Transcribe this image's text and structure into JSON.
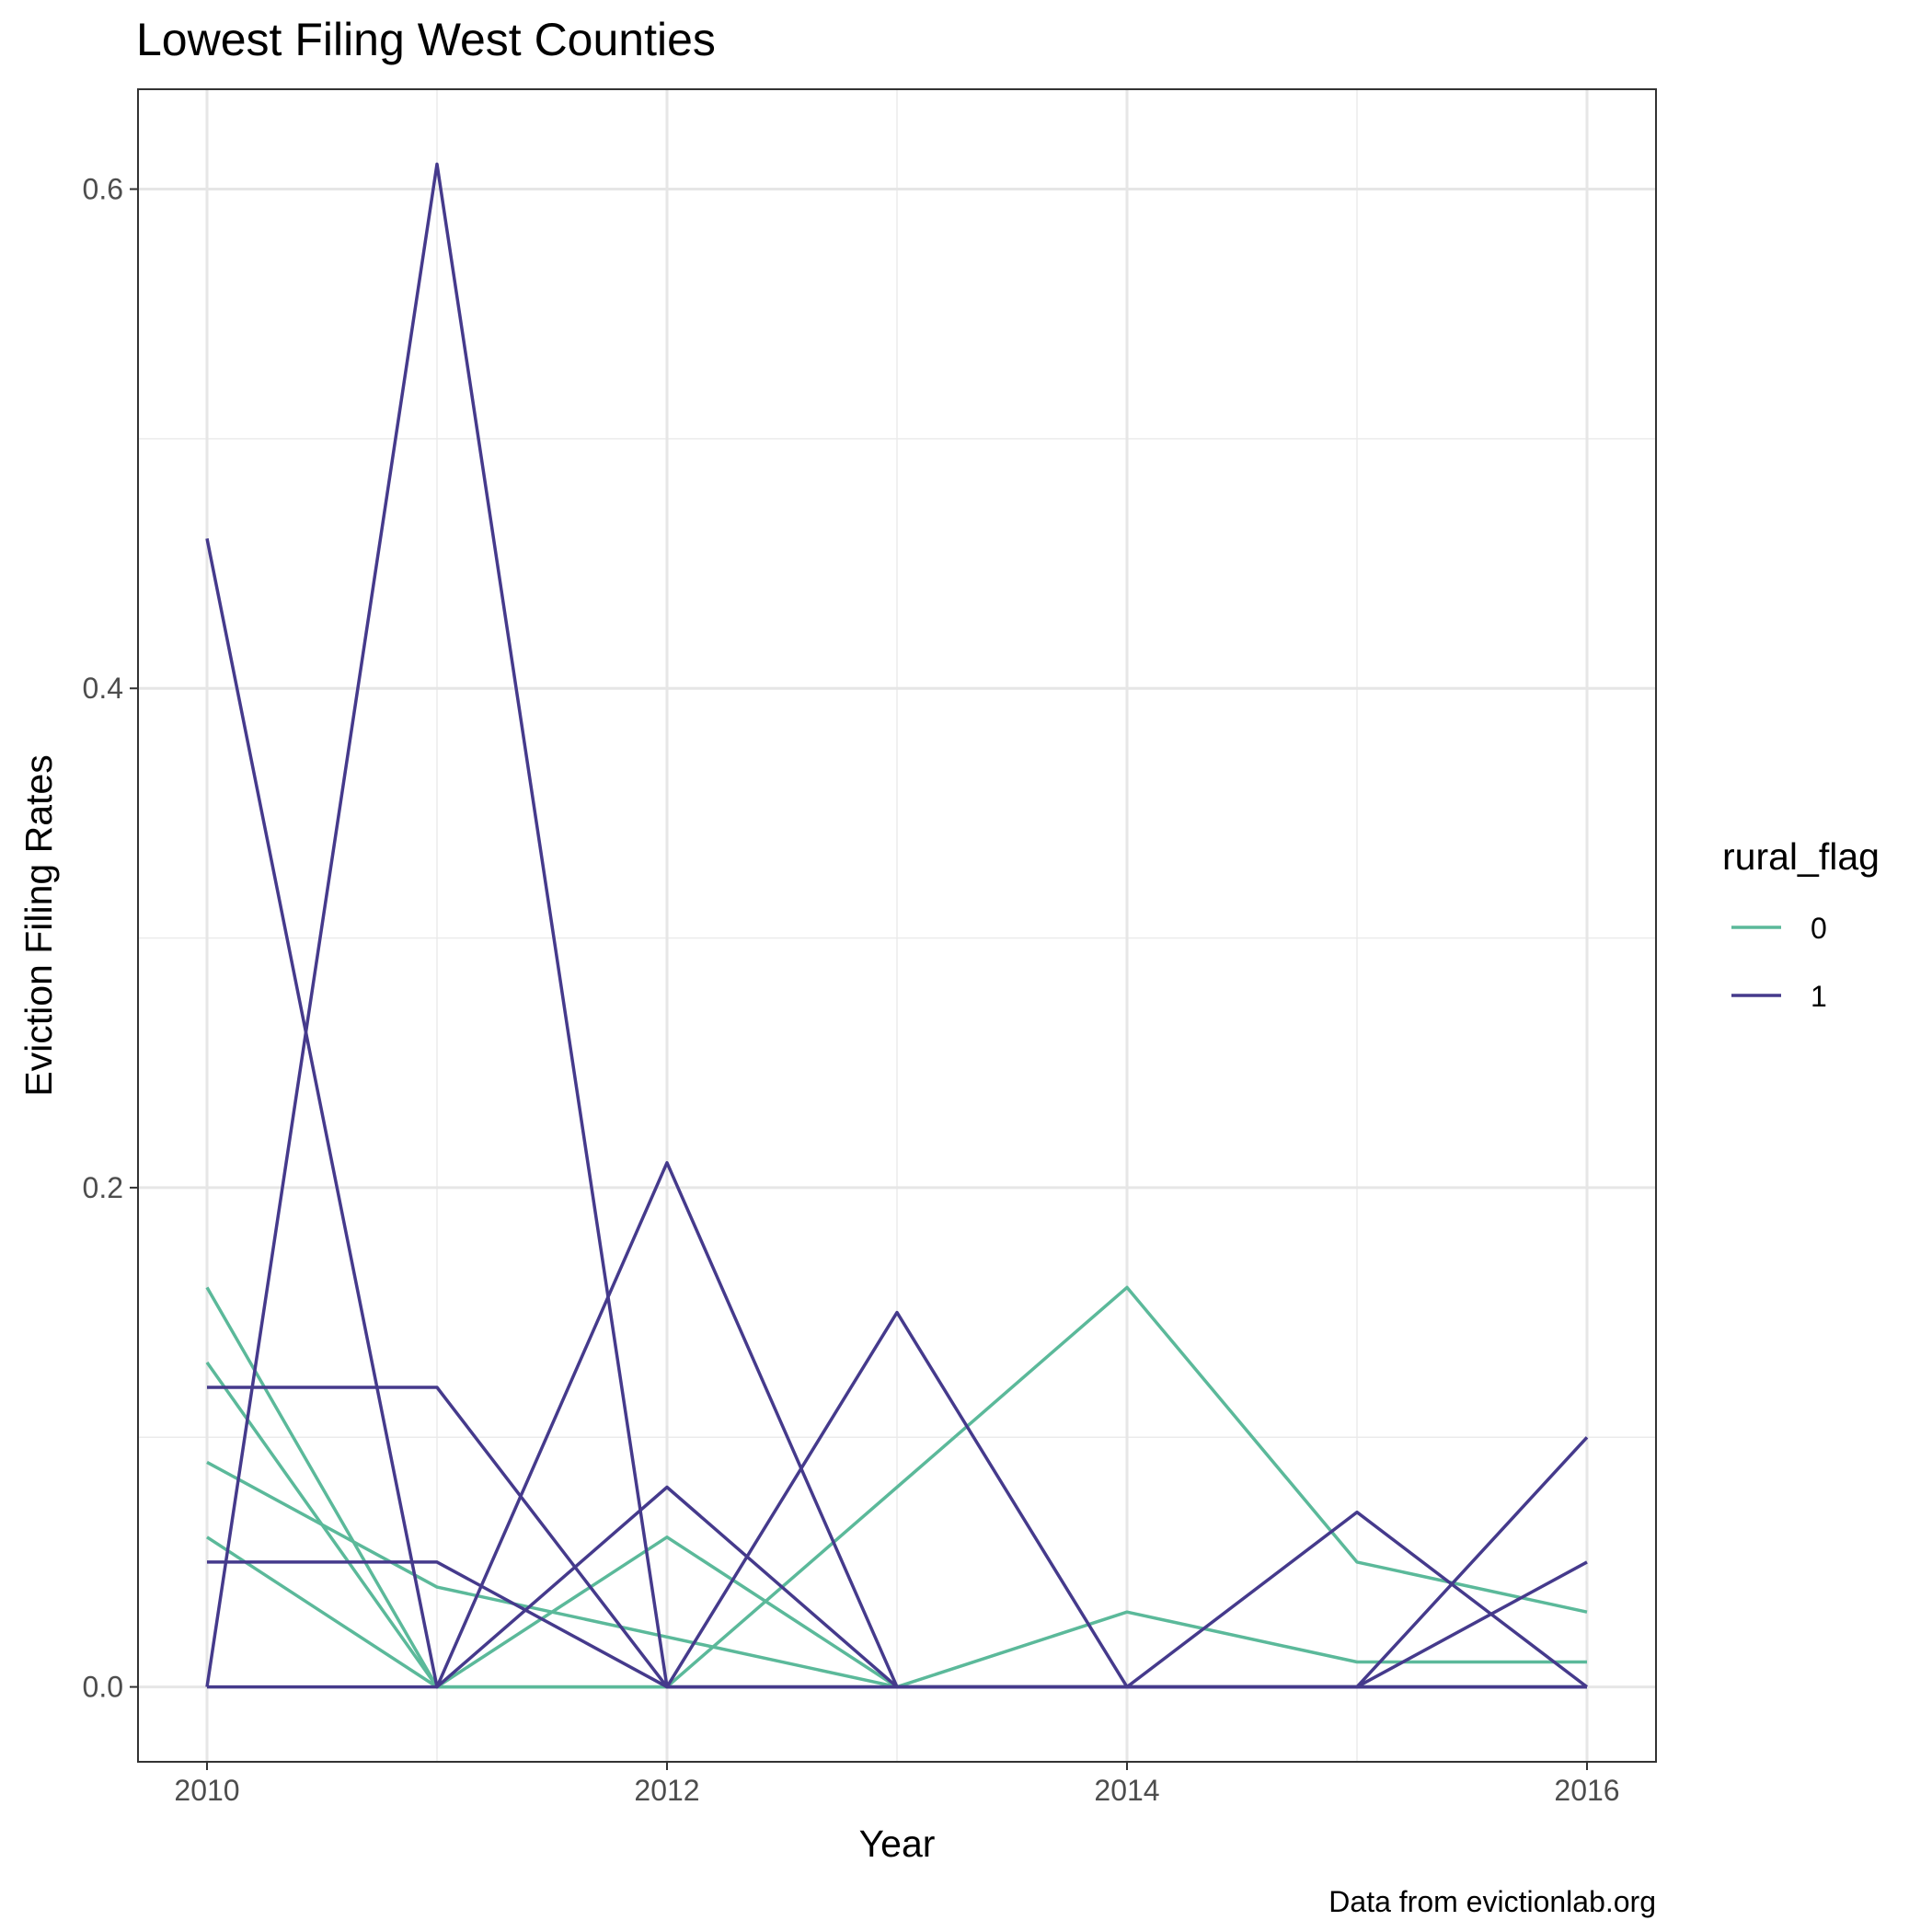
{
  "chart_data": {
    "type": "line",
    "title": "Lowest Filing West Counties",
    "xlabel": "Year",
    "ylabel": "Eviction Filing Rates",
    "caption": "Data from evictionlab.org",
    "xlim": [
      2009.7,
      2016.3
    ],
    "ylim": [
      -0.03,
      0.64
    ],
    "x_ticks": [
      2010,
      2012,
      2014,
      2016
    ],
    "y_ticks": [
      0.0,
      0.2,
      0.4,
      0.6
    ],
    "y_tick_labels": [
      "0.0",
      "0.2",
      "0.4",
      "0.6"
    ],
    "grid": true,
    "legend": {
      "title": "rural_flag",
      "position": "right",
      "entries": [
        {
          "label": "0",
          "color": "#5bb99a"
        },
        {
          "label": "1",
          "color": "#453a8c"
        }
      ]
    },
    "x": [
      2010,
      2011,
      2012,
      2013,
      2014,
      2015,
      2016
    ],
    "series": [
      {
        "group": "0",
        "values": [
          0.16,
          0.0,
          0.0,
          0.08,
          0.16,
          0.05,
          0.03
        ]
      },
      {
        "group": "0",
        "values": [
          0.13,
          0.0,
          0.0,
          0.0,
          0.03,
          0.01,
          0.01
        ]
      },
      {
        "group": "0",
        "values": [
          0.09,
          0.04,
          0.02,
          0.0,
          0.0,
          0.0,
          0.0
        ]
      },
      {
        "group": "0",
        "values": [
          0.06,
          0.0,
          0.06,
          0.0,
          0.0,
          0.0,
          0.0
        ]
      },
      {
        "group": "1",
        "values": [
          0.46,
          0.0,
          0.21,
          0.0,
          0.0,
          0.07,
          0.0
        ]
      },
      {
        "group": "1",
        "values": [
          0.0,
          0.61,
          0.0,
          0.15,
          0.0,
          0.0,
          0.1
        ]
      },
      {
        "group": "1",
        "values": [
          0.12,
          0.12,
          0.0,
          0.0,
          0.0,
          0.0,
          0.05
        ]
      },
      {
        "group": "1",
        "values": [
          0.05,
          0.05,
          0.0,
          0.0,
          0.0,
          0.0,
          0.0
        ]
      },
      {
        "group": "1",
        "values": [
          0.0,
          0.0,
          0.08,
          0.0,
          0.0,
          0.0,
          0.0
        ]
      }
    ]
  }
}
